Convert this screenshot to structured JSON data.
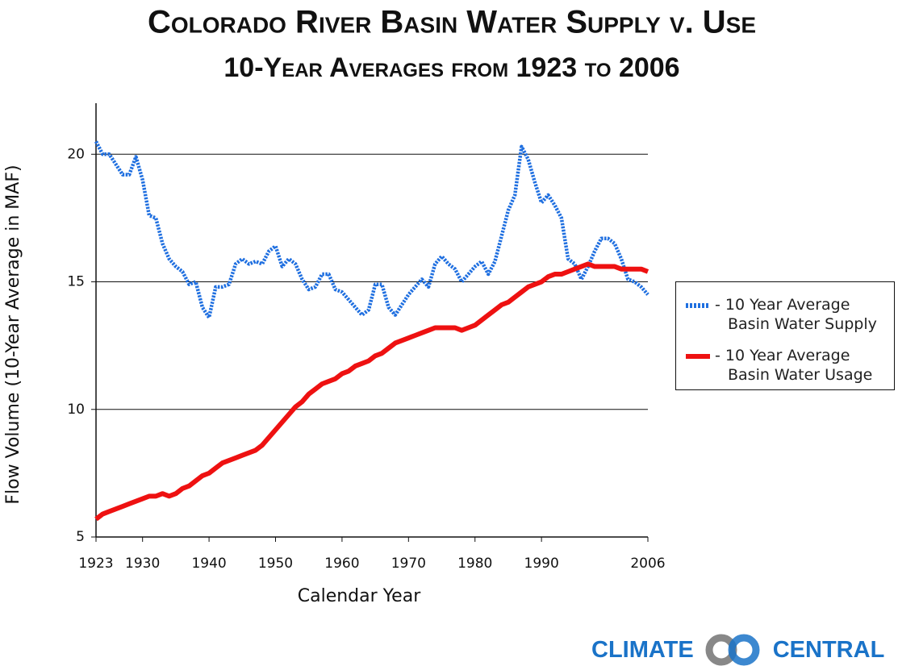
{
  "chart_data": {
    "type": "line",
    "title": "Colorado River Basin Water Supply v. Use",
    "subtitle": "10-Year Averages from 1923 to 2006",
    "x_label": "Calendar Year",
    "y_label": "Flow Volume (10-Year Average in MAF)",
    "x": [
      1923,
      1924,
      1925,
      1926,
      1927,
      1928,
      1929,
      1930,
      1931,
      1932,
      1933,
      1934,
      1935,
      1936,
      1937,
      1938,
      1939,
      1940,
      1941,
      1942,
      1943,
      1944,
      1945,
      1946,
      1947,
      1948,
      1949,
      1950,
      1951,
      1952,
      1953,
      1954,
      1955,
      1956,
      1957,
      1958,
      1959,
      1960,
      1961,
      1962,
      1963,
      1964,
      1965,
      1966,
      1967,
      1968,
      1969,
      1970,
      1971,
      1972,
      1973,
      1974,
      1975,
      1976,
      1977,
      1978,
      1979,
      1980,
      1981,
      1982,
      1983,
      1984,
      1985,
      1986,
      1987,
      1988,
      1989,
      1990,
      1991,
      1992,
      1993,
      1994,
      1995,
      1996,
      1997,
      1998,
      1999,
      2000,
      2001,
      2002,
      2003,
      2004,
      2005,
      2006
    ],
    "series": [
      {
        "name": "- 10 Year Average Basin Water Supply",
        "color": "#1f6fe0",
        "dashed": true,
        "values": [
          20.5,
          20.0,
          20.0,
          19.6,
          19.2,
          19.2,
          19.9,
          19.0,
          17.6,
          17.5,
          16.5,
          15.9,
          15.6,
          15.4,
          14.9,
          15.0,
          14.0,
          13.6,
          14.8,
          14.8,
          14.9,
          15.7,
          15.9,
          15.7,
          15.8,
          15.7,
          16.2,
          16.4,
          15.6,
          15.9,
          15.7,
          15.1,
          14.7,
          14.8,
          15.3,
          15.3,
          14.7,
          14.6,
          14.3,
          14.0,
          13.7,
          13.9,
          14.9,
          14.9,
          14.0,
          13.7,
          14.1,
          14.5,
          14.8,
          15.1,
          14.8,
          15.7,
          16.0,
          15.7,
          15.5,
          15.0,
          15.3,
          15.6,
          15.8,
          15.3,
          15.8,
          16.8,
          17.8,
          18.4,
          20.3,
          19.8,
          18.9,
          18.1,
          18.4,
          18.0,
          17.5,
          15.9,
          15.7,
          15.1,
          15.6,
          16.2,
          16.7,
          16.7,
          16.5,
          15.9,
          15.1,
          15.0,
          14.8,
          14.5
        ]
      },
      {
        "name": "- 10 Year Average Basin Water Usage",
        "color": "#ee1111",
        "dashed": false,
        "values": [
          5.7,
          5.9,
          6.0,
          6.1,
          6.2,
          6.3,
          6.4,
          6.5,
          6.6,
          6.6,
          6.7,
          6.6,
          6.7,
          6.9,
          7.0,
          7.2,
          7.4,
          7.5,
          7.7,
          7.9,
          8.0,
          8.1,
          8.2,
          8.3,
          8.4,
          8.6,
          8.9,
          9.2,
          9.5,
          9.8,
          10.1,
          10.3,
          10.6,
          10.8,
          11.0,
          11.1,
          11.2,
          11.4,
          11.5,
          11.7,
          11.8,
          11.9,
          12.1,
          12.2,
          12.4,
          12.6,
          12.7,
          12.8,
          12.9,
          13.0,
          13.1,
          13.2,
          13.2,
          13.2,
          13.2,
          13.1,
          13.2,
          13.3,
          13.5,
          13.7,
          13.9,
          14.1,
          14.2,
          14.4,
          14.6,
          14.8,
          14.9,
          15.0,
          15.2,
          15.3,
          15.3,
          15.4,
          15.5,
          15.6,
          15.7,
          15.6,
          15.6,
          15.6,
          15.6,
          15.5,
          15.5,
          15.5,
          15.5,
          15.4
        ]
      }
    ],
    "xlim": [
      1923,
      2006
    ],
    "xticks": [
      1923,
      1930,
      1940,
      1950,
      1960,
      1970,
      1980,
      1990,
      2006
    ],
    "ylim": [
      5,
      22
    ],
    "yticks": [
      5,
      10,
      15,
      20
    ],
    "grid": true,
    "legend": "right"
  },
  "logo": {
    "left": "CLIMATE",
    "right": "CENTRAL"
  }
}
